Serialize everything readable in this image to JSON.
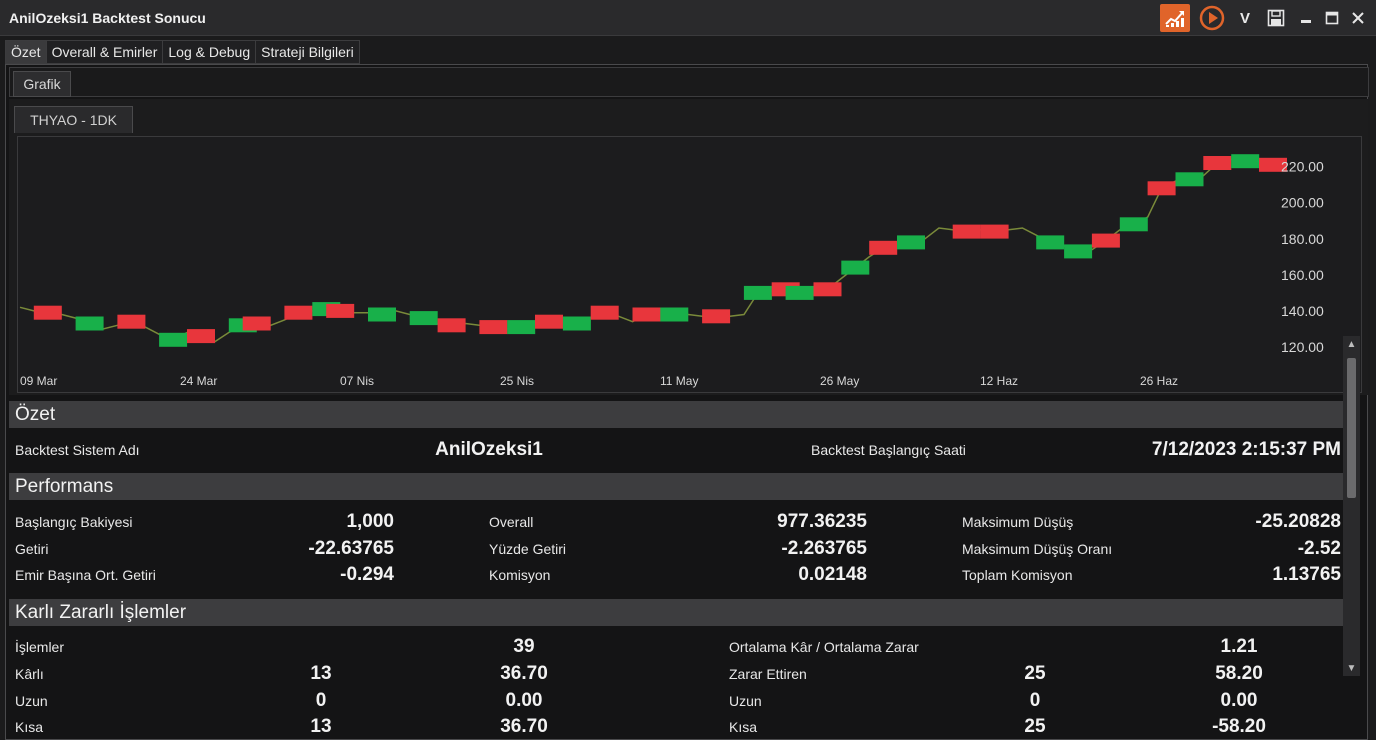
{
  "window": {
    "title": "AnilOzeksi1 Backtest Sonucu",
    "accent": "#e0642a"
  },
  "title_buttons": [
    {
      "name": "chart-icon-button",
      "icon": "chart-icon"
    },
    {
      "name": "play-icon-button",
      "icon": "play-icon"
    },
    {
      "name": "v-button",
      "label": "V"
    },
    {
      "name": "save-icon-button",
      "icon": "save-icon"
    },
    {
      "name": "minimize-button",
      "icon": "minimize-icon"
    },
    {
      "name": "maximize-button",
      "icon": "maximize-icon"
    },
    {
      "name": "close-button",
      "icon": "close-icon"
    }
  ],
  "tabs": [
    "Özet",
    "Overall & Emirler",
    "Log & Debug",
    "Strateji Bilgileri"
  ],
  "subtab": "Grafik",
  "chart_tab": "THYAO - 1DK",
  "chart_data": {
    "type": "line",
    "x_labels": [
      "09 Mar",
      "24 Mar",
      "07 Nis",
      "25 Nis",
      "11 May",
      "26 May",
      "12 Haz",
      "26 Haz"
    ],
    "y_ticks": [
      120,
      140,
      160,
      180,
      200,
      220
    ],
    "y_tick_labels": [
      "120.00",
      "140.00",
      "160.00",
      "180.00",
      "200.00",
      "220.00"
    ],
    "ylim": [
      110,
      232
    ],
    "series": [
      {
        "values": [
          142,
          140,
          139,
          138,
          136,
          133,
          130,
          132,
          134,
          131,
          127,
          124,
          128,
          126,
          123,
          128,
          132,
          133,
          132,
          135,
          139,
          140,
          141,
          140,
          139,
          139,
          138,
          140,
          138,
          136,
          133,
          132,
          133,
          132,
          131,
          130,
          131,
          132,
          134,
          135,
          133,
          136,
          139,
          137,
          134,
          138,
          137,
          138,
          138,
          137,
          137,
          137,
          138,
          150,
          151,
          152,
          150,
          149,
          152,
          158,
          164,
          170,
          175,
          176,
          178,
          180,
          186,
          185,
          184,
          185,
          184,
          185,
          186,
          182,
          178,
          176,
          173,
          174,
          179,
          185,
          188,
          192,
          208,
          212,
          213,
          215,
          222,
          224,
          223,
          222,
          221
        ]
      }
    ],
    "colors": {
      "line": "#7a8a3a",
      "buy": "#18b04a",
      "sell": "#e8363c"
    },
    "trade_markers": [
      {
        "i": 2,
        "type": "sell"
      },
      {
        "i": 5,
        "type": "buy"
      },
      {
        "i": 8,
        "type": "sell"
      },
      {
        "i": 11,
        "type": "buy"
      },
      {
        "i": 13,
        "type": "sell"
      },
      {
        "i": 16,
        "type": "buy"
      },
      {
        "i": 17,
        "type": "sell"
      },
      {
        "i": 20,
        "type": "sell"
      },
      {
        "i": 22,
        "type": "buy"
      },
      {
        "i": 23,
        "type": "sell"
      },
      {
        "i": 26,
        "type": "buy"
      },
      {
        "i": 29,
        "type": "buy"
      },
      {
        "i": 31,
        "type": "sell"
      },
      {
        "i": 34,
        "type": "sell"
      },
      {
        "i": 36,
        "type": "buy"
      },
      {
        "i": 38,
        "type": "sell"
      },
      {
        "i": 40,
        "type": "buy"
      },
      {
        "i": 42,
        "type": "sell"
      },
      {
        "i": 45,
        "type": "sell"
      },
      {
        "i": 47,
        "type": "buy"
      },
      {
        "i": 50,
        "type": "sell"
      },
      {
        "i": 53,
        "type": "buy"
      },
      {
        "i": 55,
        "type": "sell"
      },
      {
        "i": 56,
        "type": "buy"
      },
      {
        "i": 58,
        "type": "sell"
      },
      {
        "i": 60,
        "type": "buy"
      },
      {
        "i": 62,
        "type": "sell"
      },
      {
        "i": 64,
        "type": "buy"
      },
      {
        "i": 68,
        "type": "sell"
      },
      {
        "i": 70,
        "type": "sell"
      },
      {
        "i": 74,
        "type": "buy"
      },
      {
        "i": 76,
        "type": "buy"
      },
      {
        "i": 78,
        "type": "sell"
      },
      {
        "i": 80,
        "type": "buy"
      },
      {
        "i": 82,
        "type": "sell"
      },
      {
        "i": 84,
        "type": "buy"
      },
      {
        "i": 86,
        "type": "sell"
      },
      {
        "i": 88,
        "type": "buy"
      },
      {
        "i": 90,
        "type": "sell"
      }
    ]
  },
  "ozet": {
    "header": "Özet",
    "system_label": "Backtest Sistem Adı",
    "system_value": "AnilOzeksi1",
    "start_label": "Backtest Başlangıç Saati",
    "start_value": "7/12/2023 2:15:37 PM"
  },
  "performans": {
    "header": "Performans",
    "rows": [
      [
        {
          "label": "Başlangıç Bakiyesi",
          "value": "1,000"
        },
        {
          "label": "Overall",
          "value": "977.36235"
        },
        {
          "label": "Maksimum Düşüş",
          "value": "-25.20828"
        }
      ],
      [
        {
          "label": "Getiri",
          "value": "-22.63765"
        },
        {
          "label": "Yüzde Getiri",
          "value": "-2.263765"
        },
        {
          "label": "Maksimum Düşüş Oranı",
          "value": "-2.52"
        }
      ],
      [
        {
          "label": "Emir Başına Ort. Getiri",
          "value": "-0.294"
        },
        {
          "label": "Komisyon",
          "value": "0.02148"
        },
        {
          "label": "Toplam Komisyon",
          "value": "1.13765"
        }
      ]
    ]
  },
  "karli": {
    "header": "Karlı Zararlı İşlemler",
    "islemler_label": "İşlemler",
    "islemler_value": "39",
    "ortalama_label": "Ortalama Kâr / Ortalama Zarar",
    "ortalama_value": "1.21",
    "rows": [
      {
        "l_label": "Kârlı",
        "l_count": "13",
        "l_value": "36.70",
        "r_label": "Zarar Ettiren",
        "r_count": "25",
        "r_value": "58.20"
      },
      {
        "l_label": "Uzun",
        "l_count": "0",
        "l_value": "0.00",
        "r_label": "Uzun",
        "r_count": "0",
        "r_value": "0.00"
      },
      {
        "l_label": "Kısa",
        "l_count": "13",
        "l_value": "36.70",
        "r_label": "Kısa",
        "r_count": "25",
        "r_value": "-58.20"
      }
    ]
  }
}
